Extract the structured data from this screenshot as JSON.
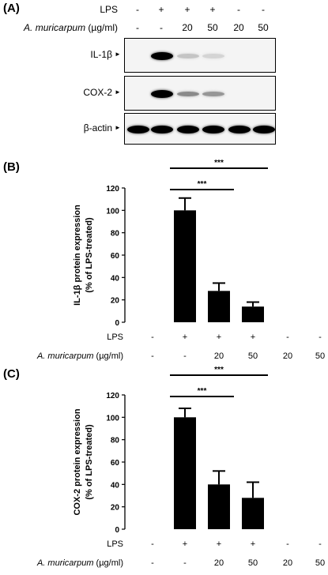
{
  "panel_a": {
    "label": "(A)",
    "header": {
      "lps_label": "LPS",
      "lps_values": [
        "-",
        "+",
        "+",
        "+",
        "-",
        "-"
      ],
      "treatment_label": "A. muricarpum",
      "treatment_unit": "(µg/ml)",
      "treatment_values": [
        "-",
        "-",
        "20",
        "50",
        "20",
        "50"
      ]
    },
    "blots": [
      {
        "label": "IL-1β",
        "arrow": "►",
        "intensities": [
          0.0,
          1.0,
          0.15,
          0.08,
          0.0,
          0.0
        ]
      },
      {
        "label": "COX-2",
        "arrow": "►",
        "intensities": [
          0.0,
          1.0,
          0.4,
          0.35,
          0.0,
          0.0
        ]
      },
      {
        "label": "β-actin",
        "arrow": "►",
        "intensities": [
          1.0,
          1.0,
          1.0,
          1.0,
          1.0,
          1.0
        ]
      }
    ]
  },
  "chart_data": [
    {
      "panel": "(B)",
      "type": "bar",
      "ylabel_line1": "IL-1β protein expression",
      "ylabel_line2": "(% of LPS-treated)",
      "ylim": [
        0,
        120
      ],
      "yticks": [
        "0",
        "20",
        "40",
        "60",
        "80",
        "100",
        "120"
      ],
      "values": [
        0,
        100,
        28,
        14,
        0,
        0
      ],
      "errors": [
        0,
        11,
        7,
        4,
        0,
        0
      ],
      "lps_label": "LPS",
      "lps_values": [
        "-",
        "+",
        "+",
        "+",
        "-",
        "-"
      ],
      "treatment_label": "A. muricarpum",
      "treatment_unit": "(µg/ml)",
      "treatment_values": [
        "-",
        "-",
        "20",
        "50",
        "20",
        "50"
      ],
      "significance": [
        {
          "from": 1,
          "to": 2,
          "label": "***"
        },
        {
          "from": 1,
          "to": 3,
          "label": "***"
        }
      ]
    },
    {
      "panel": "(C)",
      "type": "bar",
      "ylabel_line1": "COX-2 protein expression",
      "ylabel_line2": "(% of LPS-treated)",
      "ylim": [
        0,
        120
      ],
      "yticks": [
        "0",
        "20",
        "40",
        "60",
        "80",
        "100",
        "120"
      ],
      "values": [
        0,
        100,
        40,
        28,
        0,
        0
      ],
      "errors": [
        0,
        8,
        12,
        14,
        0,
        0
      ],
      "lps_label": "LPS",
      "lps_values": [
        "-",
        "+",
        "+",
        "+",
        "-",
        "-"
      ],
      "treatment_label": "A. muricarpum",
      "treatment_unit": "(µg/ml)",
      "treatment_values": [
        "-",
        "-",
        "20",
        "50",
        "20",
        "50"
      ],
      "significance": [
        {
          "from": 1,
          "to": 2,
          "label": "***"
        },
        {
          "from": 1,
          "to": 3,
          "label": "***"
        }
      ]
    }
  ]
}
